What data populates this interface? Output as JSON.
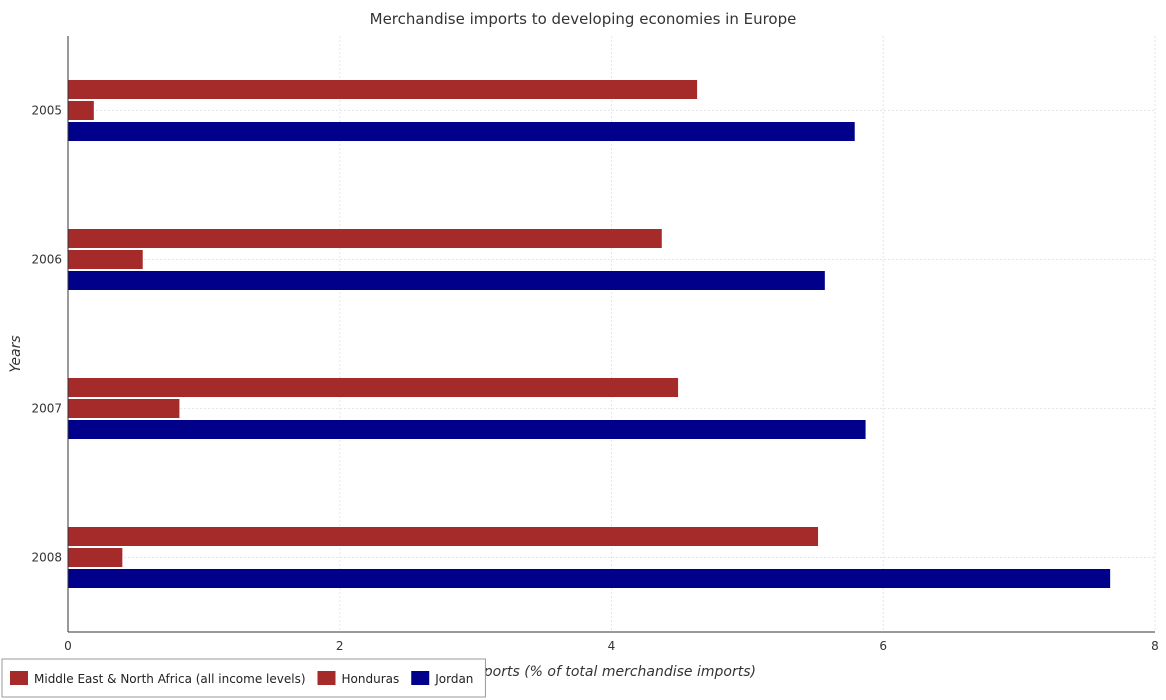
{
  "chart_data": {
    "type": "bar",
    "orientation": "horizontal",
    "title": "Merchandise imports to developing economies in Europe",
    "xlabel": "Imports (% of total merchandise imports)",
    "ylabel": "Years",
    "categories": [
      "2005",
      "2006",
      "2007",
      "2008"
    ],
    "series": [
      {
        "name": "Middle East & North Africa (all income levels)",
        "color": "#a52a2a",
        "values": [
          4.63,
          4.37,
          4.49,
          5.52
        ]
      },
      {
        "name": "Honduras",
        "color": "#a52a2a",
        "values": [
          0.19,
          0.55,
          0.82,
          0.4
        ]
      },
      {
        "name": "Jordan",
        "color": "#00008b",
        "values": [
          5.79,
          5.57,
          5.87,
          7.67
        ]
      }
    ],
    "xlim": [
      0,
      8
    ],
    "xticks": [
      0,
      2,
      4,
      6,
      8
    ],
    "grid": true,
    "legend_position": "bottom-left"
  }
}
